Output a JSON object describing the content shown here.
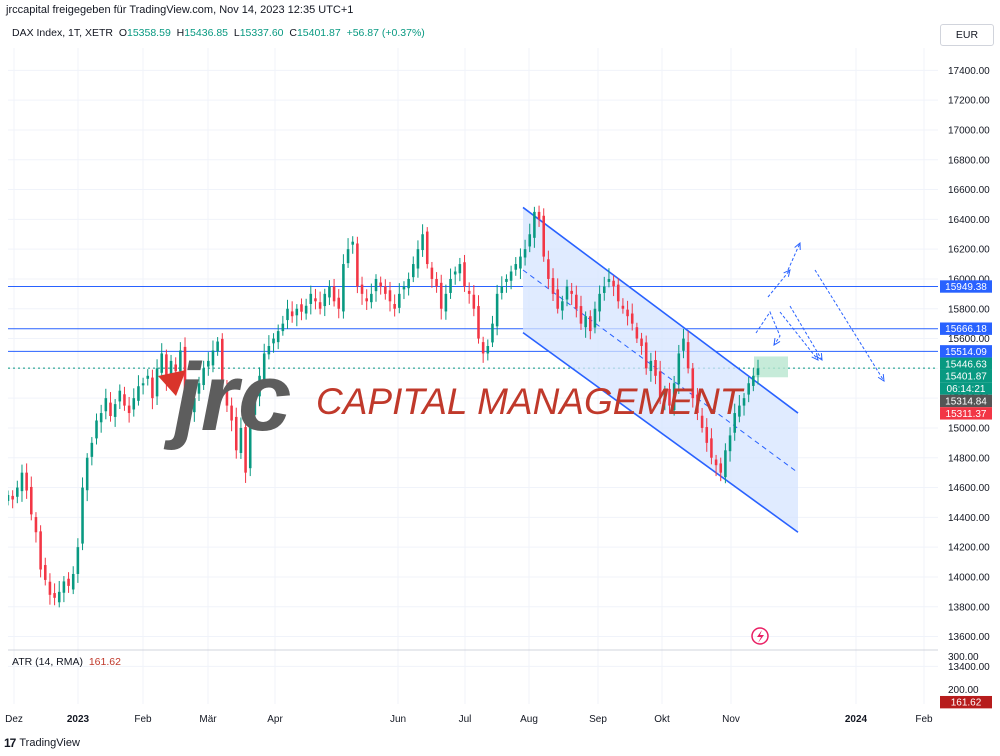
{
  "header": {
    "text": "jrccapital freigegeben für TradingView.com, Nov 14, 2023 12:35 UTC+1"
  },
  "legend": {
    "symbol": "DAX Index, 1T, XETR",
    "open_label": "O",
    "open": "15358.59",
    "high_label": "H",
    "high": "15436.85",
    "low_label": "L",
    "low": "15337.60",
    "close_label": "C",
    "close": "15401.87",
    "change": "+56.87 (+0.37%)"
  },
  "currency": "EUR",
  "watermark": {
    "mark": "jrc",
    "text": "CAPITAL MANAGEMENT"
  },
  "atr": {
    "label": "ATR (14, RMA)",
    "value": "161.62"
  },
  "footer": {
    "brand": "TradingView"
  },
  "colors": {
    "up": "#089981",
    "down": "#f23645",
    "channel": "#2962ff",
    "channel_fill": "#d6e4ff",
    "level": "#2962ff",
    "watermark_red": "#c0392b",
    "watermark_gray": "#5d5d5d"
  },
  "chart_data": [
    {
      "type": "candlestick",
      "y_axis_ticks": [
        "17400.00",
        "17200.00",
        "17000.00",
        "16800.00",
        "16600.00",
        "16400.00",
        "16200.00",
        "16000.00",
        "15800.00",
        "15600.00",
        "15400.00",
        "15200.00",
        "15000.00",
        "14800.00",
        "14600.00",
        "14400.00",
        "14200.00",
        "14000.00",
        "13800.00",
        "13600.00",
        "13400.00"
      ],
      "ylim": [
        13300,
        17550
      ],
      "x_axis_ticks": [
        "Dez",
        "2023",
        "Feb",
        "Mär",
        "Apr",
        "Jun",
        "Jul",
        "Aug",
        "Sep",
        "Okt",
        "Nov",
        "2024",
        "Feb"
      ],
      "price_levels": [
        {
          "label": "15949.38",
          "value": 15949.38,
          "color": "#2962ff"
        },
        {
          "label": "15666.18",
          "value": 15666.18,
          "color": "#2962ff"
        },
        {
          "label": "15514.09",
          "value": 15514.09,
          "color": "#2962ff"
        },
        {
          "label": "15446.63",
          "value": 15446.63,
          "color": "#089981"
        },
        {
          "label": "15401.87",
          "value": 15401.87,
          "color": "#089981"
        },
        {
          "label": "06:14:21",
          "value": 15340,
          "color": "#089981"
        },
        {
          "label": "15314.84",
          "value": 15314.84,
          "color": "#555555"
        },
        {
          "label": "15311.37",
          "value": 15311.37,
          "color": "#f23645"
        }
      ],
      "horizontal_lines": [
        15949.38,
        15666.18,
        15514.09
      ],
      "last_close_line": 15401.87,
      "channel": {
        "start_date": "Aug",
        "upper": [
          16480,
          15100
        ],
        "lower": [
          15640,
          14300
        ]
      },
      "closes": [
        14550,
        14520,
        14600,
        14700,
        14580,
        14420,
        14300,
        14050,
        13980,
        13880,
        13860,
        13900,
        13970,
        13940,
        14020,
        14200,
        14600,
        14800,
        14900,
        15050,
        15100,
        15200,
        15080,
        15160,
        15250,
        15150,
        15100,
        15200,
        15280,
        15300,
        15350,
        15200,
        15400,
        15500,
        15320,
        15450,
        15380,
        15520,
        15250,
        15100,
        15200,
        15300,
        15400,
        15450,
        15520,
        15580,
        15300,
        15150,
        15050,
        14850,
        15000,
        14700,
        15100,
        15200,
        15350,
        15500,
        15550,
        15600,
        15650,
        15700,
        15800,
        15750,
        15800,
        15780,
        15820,
        15900,
        15850,
        15800,
        15900,
        15950,
        15850,
        15800,
        16100,
        16200,
        16250,
        15950,
        15900,
        15850,
        15900,
        16000,
        15950,
        15900,
        15850,
        15800,
        15900,
        15950,
        16000,
        16100,
        16200,
        16300,
        16100,
        16000,
        15950,
        15800,
        15900,
        16000,
        16050,
        16100,
        15950,
        15900,
        15800,
        15600,
        15500,
        15550,
        15700,
        15900,
        15950,
        16000,
        16050,
        16100,
        16150,
        16200,
        16300,
        16450,
        16400,
        16150,
        16000,
        15900,
        15800,
        15850,
        15950,
        15900,
        15800,
        15700,
        15750,
        15650,
        15800,
        15900,
        15950,
        16000,
        15950,
        15850,
        15800,
        15750,
        15700,
        15600,
        15550,
        15400,
        15450,
        15350,
        15200,
        15250,
        15150,
        15300,
        15500,
        15600,
        15400,
        15200,
        15100,
        15000,
        14900,
        14800,
        14750,
        14700,
        14850,
        14950,
        15100,
        15150,
        15200,
        15300,
        15350,
        15400
      ]
    },
    {
      "type": "line",
      "name": "ATR (14, RMA)",
      "y_axis_ticks": [
        "300.00",
        "200.00"
      ],
      "ylim": [
        150,
        320
      ],
      "last_value": 161.62
    }
  ]
}
